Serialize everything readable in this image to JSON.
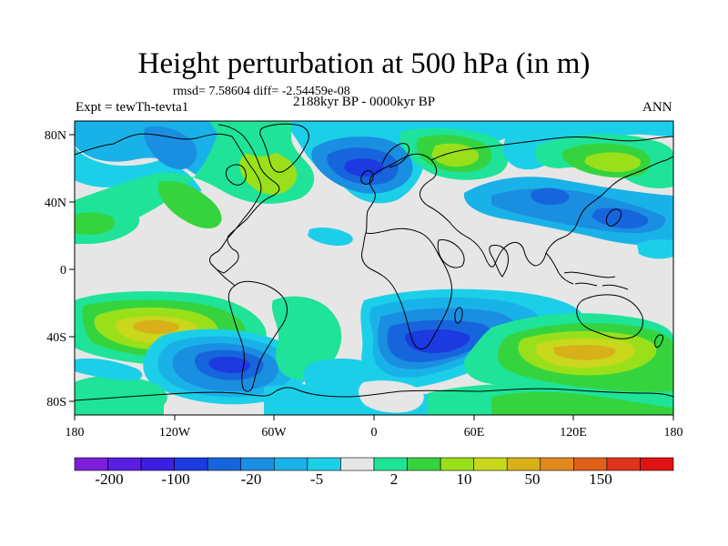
{
  "title": "Height perturbation at 500 hPa (in m)",
  "stats": "rmsd= 7.58604 diff= -2.54459e-08",
  "experiment": "Expt = tewTh-tevta1",
  "period": "2188kyr BP - 0000kyr BP",
  "season": "ANN",
  "colors": {
    "c1": "#7b1fd8",
    "c2": "#5a1ee0",
    "c3": "#3c1fe0",
    "c4": "#1c3ae0",
    "c5": "#1765dc",
    "c6": "#1a8ee0",
    "c7": "#19b2e8",
    "c8": "#1ccfe8",
    "c9": "#e6e6e6",
    "c10": "#1fe398",
    "c11": "#35d43e",
    "c12": "#9ae01a",
    "c13": "#c9d81c",
    "c14": "#d8b01a",
    "c15": "#e08a1c",
    "c16": "#e05f1a",
    "c17": "#e0341a",
    "c18": "#e01212",
    "land_outline": "#000000"
  },
  "chart_data": {
    "type": "heatmap",
    "projection": "cylindrical equidistant",
    "field": "500 hPa geopotential height perturbation (m)",
    "lon_range": [
      -180,
      180
    ],
    "lat_range": [
      -90,
      90
    ],
    "x_ticks": [
      "180",
      "120W",
      "60W",
      "0",
      "60E",
      "120E",
      "180"
    ],
    "y_ticks": [
      "80N",
      "40N",
      "0",
      "40S",
      "80S"
    ],
    "colorbar_labels": [
      "-200",
      "-100",
      "-20",
      "-5",
      "2",
      "10",
      "50",
      "150"
    ],
    "colorbar_colors": [
      "c1",
      "c2",
      "c3",
      "c4",
      "c5",
      "c6",
      "c7",
      "c8",
      "c9",
      "c10",
      "c11",
      "c12",
      "c13",
      "c14",
      "c15",
      "c16",
      "c17",
      "c18"
    ],
    "anomaly_centers": [
      {
        "lon": -140,
        "lat": 60,
        "category": "c7",
        "sign": "negative"
      },
      {
        "lon": -90,
        "lat": 47,
        "category": "c11",
        "sign": "positive"
      },
      {
        "lon": -50,
        "lat": 50,
        "category": "c12",
        "sign": "positive"
      },
      {
        "lon": 5,
        "lat": 55,
        "category": "c4",
        "sign": "negative"
      },
      {
        "lon": 55,
        "lat": 65,
        "category": "c12",
        "sign": "positive"
      },
      {
        "lon": 120,
        "lat": 60,
        "category": "c12",
        "sign": "positive"
      },
      {
        "lon": 100,
        "lat": 45,
        "category": "c6",
        "sign": "negative"
      },
      {
        "lon": 140,
        "lat": 38,
        "category": "c6",
        "sign": "negative"
      },
      {
        "lon": -170,
        "lat": 35,
        "category": "c11",
        "sign": "positive"
      },
      {
        "lon": -140,
        "lat": -35,
        "category": "c13",
        "sign": "positive"
      },
      {
        "lon": -95,
        "lat": -57,
        "category": "c4",
        "sign": "negative"
      },
      {
        "lon": 45,
        "lat": -47,
        "category": "c4",
        "sign": "negative"
      },
      {
        "lon": 125,
        "lat": -55,
        "category": "c14",
        "sign": "positive"
      },
      {
        "lon": -40,
        "lat": -40,
        "category": "c10",
        "sign": "positive"
      },
      {
        "lon": 90,
        "lat": -78,
        "category": "c11",
        "sign": "positive"
      },
      {
        "lon": -120,
        "lat": -80,
        "category": "c10",
        "sign": "positive"
      }
    ]
  }
}
